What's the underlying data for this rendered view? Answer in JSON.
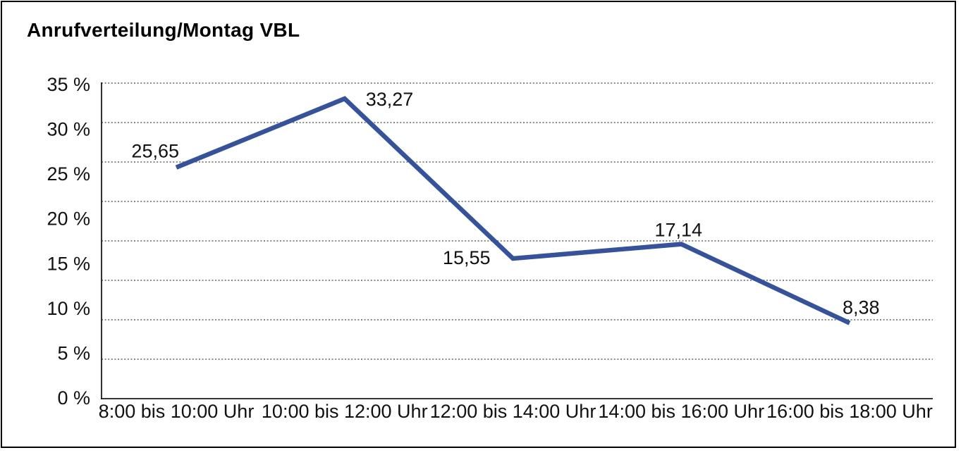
{
  "title": "Anrufverteilung/Montag VBL",
  "chart_data": {
    "type": "line",
    "title": "Anrufverteilung/Montag VBL",
    "categories": [
      "8:00 bis 10:00 Uhr",
      "10:00 bis 12:00 Uhr",
      "12:00 bis 14:00 Uhr",
      "14:00 bis 16:00 Uhr",
      "16:00 bis 18:00 Uhr"
    ],
    "values": [
      25.65,
      33.27,
      15.55,
      17.14,
      8.38
    ],
    "value_labels": [
      "25,65",
      "33,27",
      "15,55",
      "17,14",
      "8,38"
    ],
    "y_tick_labels": [
      "35 %",
      "30 %",
      "25 %",
      "20 %",
      "15 %",
      "10 %",
      "5 %",
      "0 %"
    ],
    "ylim": [
      0,
      35
    ],
    "xlabel": "",
    "ylabel": "",
    "legend": "none",
    "grid": "horizontal-dotted",
    "line_color": "#35529E",
    "text_color": "#111111",
    "frame_color": "#000000",
    "background": "#FFFFFF"
  }
}
